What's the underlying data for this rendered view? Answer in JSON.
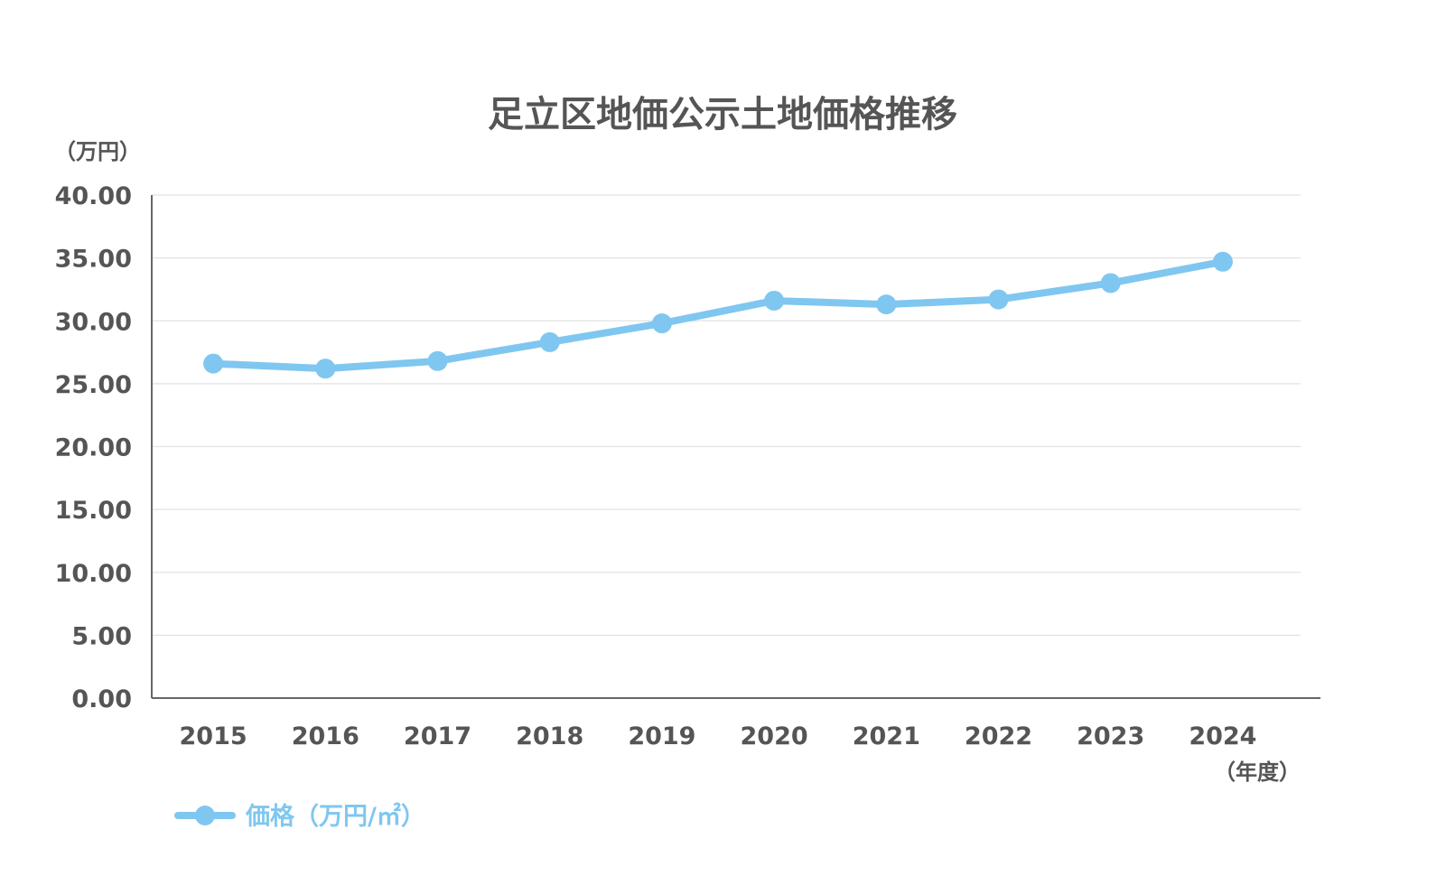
{
  "chart_data": {
    "type": "line",
    "title": "足立区地価公示土地価格推移",
    "ylabel": "（万円）",
    "xlabel": "（年度）",
    "ylim": [
      0,
      40
    ],
    "yticks": [
      "0.00",
      "5.00",
      "10.00",
      "15.00",
      "20.00",
      "25.00",
      "30.00",
      "35.00",
      "40.00"
    ],
    "categories": [
      "2015",
      "2016",
      "2017",
      "2018",
      "2019",
      "2020",
      "2021",
      "2022",
      "2023",
      "2024"
    ],
    "series": [
      {
        "name": "価格（万円/㎡）",
        "values": [
          26.6,
          26.2,
          26.8,
          28.3,
          29.8,
          31.6,
          31.3,
          31.7,
          33.0,
          34.7
        ]
      }
    ],
    "grid": true,
    "legend_position": "bottom-left",
    "colors": {
      "series": "#7fc7f0",
      "text": "#555555",
      "legend_text": "#7fc7f0",
      "axis": "#666666",
      "grid": "#e2e2e2"
    }
  }
}
